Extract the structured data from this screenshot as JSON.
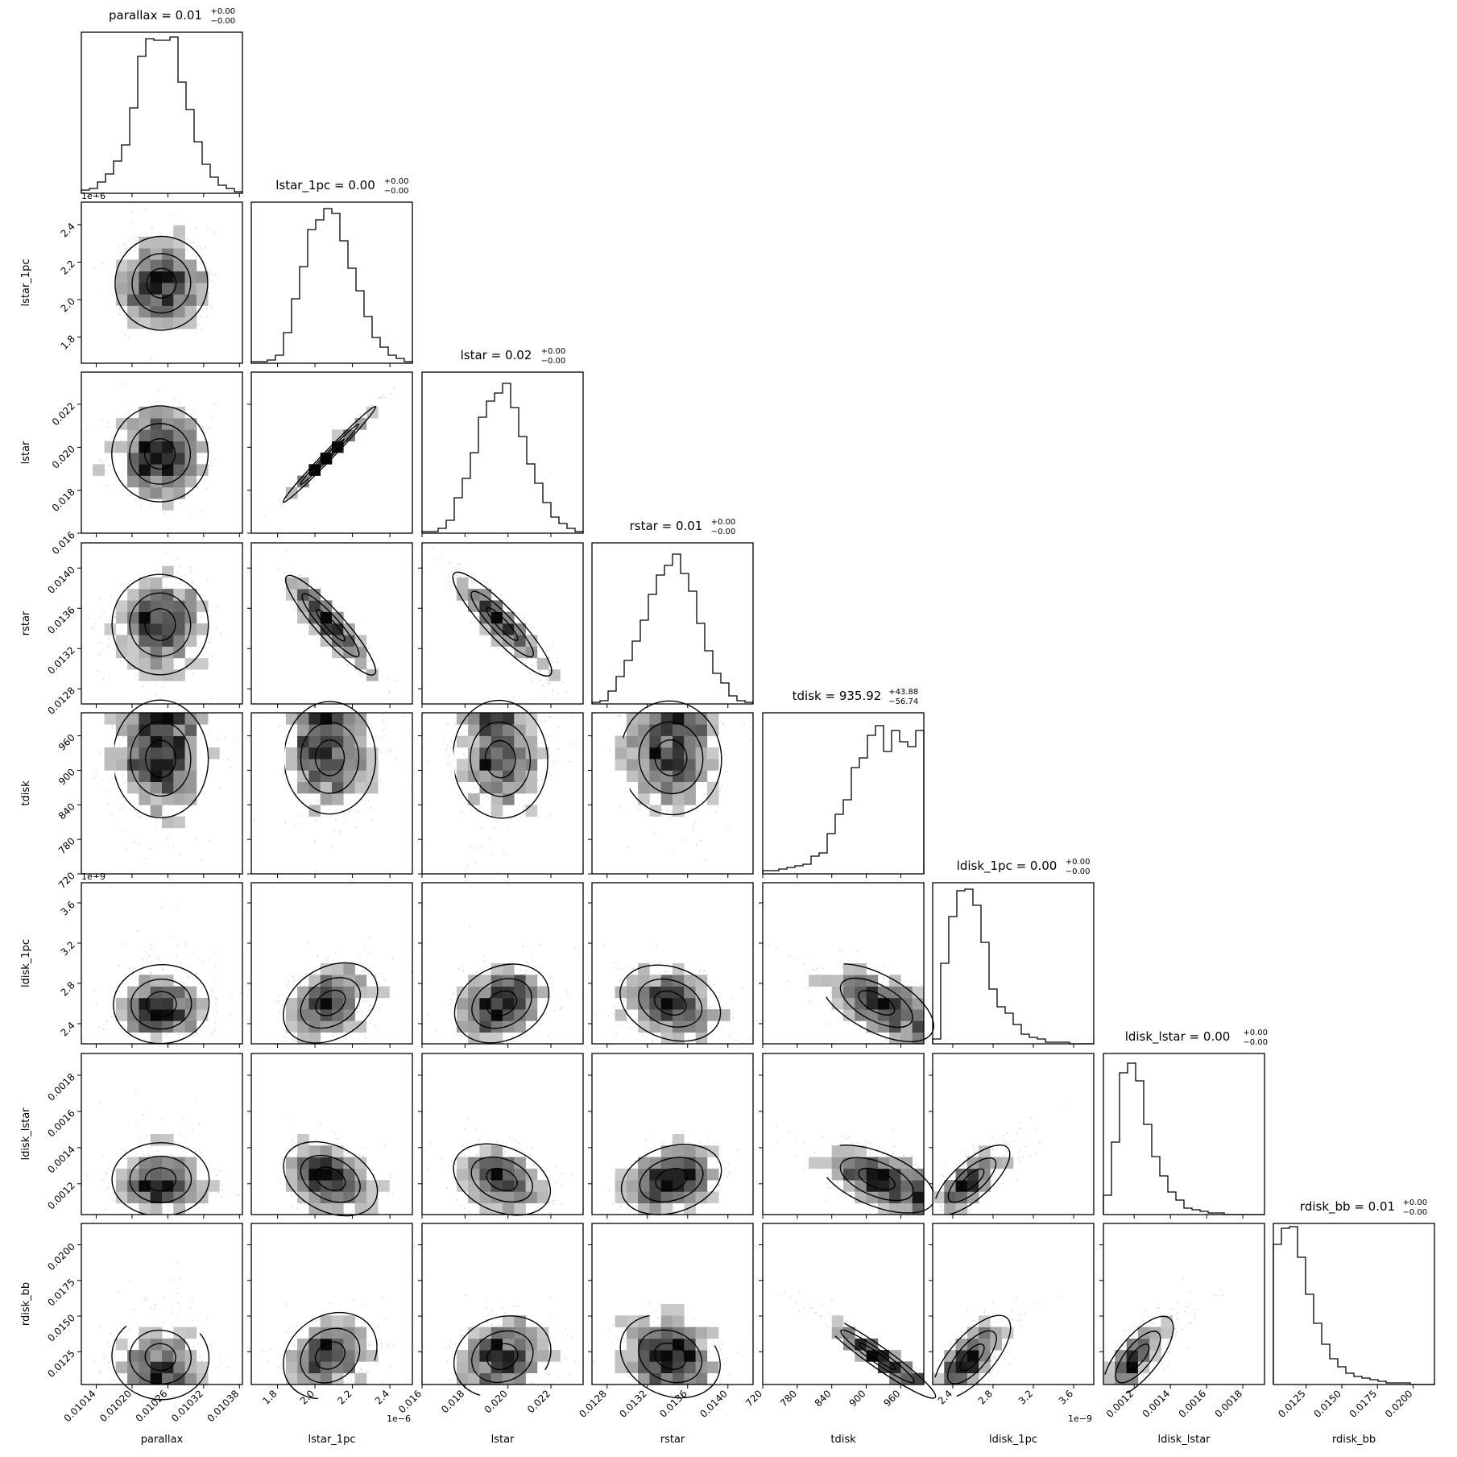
{
  "chart_data": {
    "type": "corner",
    "parameters": [
      "parallax",
      "lstar_1pc",
      "lstar",
      "rstar",
      "tdisk",
      "ldisk_1pc",
      "ldisk_lstar",
      "rdisk_bb"
    ],
    "titles": [
      {
        "main": "parallax = 0.01",
        "sup": "+0.00",
        "sub": "−0.00"
      },
      {
        "main": "lstar_1pc = 0.00",
        "sup": "+0.00",
        "sub": "−0.00"
      },
      {
        "main": "lstar = 0.02",
        "sup": "+0.00",
        "sub": "−0.00"
      },
      {
        "main": "rstar = 0.01",
        "sup": "+0.00",
        "sub": "−0.00"
      },
      {
        "main": "tdisk = 935.92",
        "sup": "+43.88",
        "sub": "−56.74"
      },
      {
        "main": "ldisk_1pc = 0.00",
        "sup": "+0.00",
        "sub": "−0.00"
      },
      {
        "main": "ldisk_lstar = 0.00",
        "sup": "+0.00",
        "sub": "−0.00"
      },
      {
        "main": "rdisk_bb = 0.01",
        "sup": "+0.00",
        "sub": "−0.00"
      }
    ],
    "ranges": [
      [
        0.010115,
        0.010385
      ],
      [
        1.66e-06,
        2.52e-06
      ],
      [
        0.016,
        0.0235
      ],
      [
        0.01265,
        0.01425
      ],
      [
        720,
        1000
      ],
      [
        2.2e-09,
        3.8e-09
      ],
      [
        0.00103,
        0.00192
      ],
      [
        0.0102,
        0.0215
      ]
    ],
    "ticks": [
      [
        0.01014,
        0.0102,
        0.01026,
        0.01032,
        0.01038
      ],
      [
        1.8e-06,
        2e-06,
        2.2e-06,
        2.4e-06
      ],
      [
        0.016,
        0.018,
        0.02,
        0.022
      ],
      [
        0.0128,
        0.0132,
        0.0136,
        0.014
      ],
      [
        720,
        780,
        840,
        900,
        960
      ],
      [
        2.4e-09,
        2.8e-09,
        3.2e-09,
        3.6e-09
      ],
      [
        0.0012,
        0.0014,
        0.0016,
        0.0018
      ],
      [
        0.0125,
        0.015,
        0.0175,
        0.02
      ]
    ],
    "tick_labels_x": [
      [
        "0.01014",
        "0.01020",
        "0.01026",
        "0.01032",
        "0.01038"
      ],
      [
        "1.8",
        "2.0",
        "2.2",
        "2.4"
      ],
      [
        "0.016",
        "0.018",
        "0.020",
        "0.022"
      ],
      [
        "0.0128",
        "0.0132",
        "0.0136",
        "0.0140"
      ],
      [
        "720",
        "780",
        "840",
        "900",
        "960"
      ],
      [
        "2.4",
        "2.8",
        "3.2",
        "3.6"
      ],
      [
        "0.0012",
        "0.0014",
        "0.0016",
        "0.0018"
      ],
      [
        "0.0125",
        "0.0150",
        "0.0175",
        "0.0200"
      ]
    ],
    "tick_labels_y": [
      [],
      [
        "1.8",
        "2.0",
        "2.2",
        "2.4"
      ],
      [
        "0.016",
        "0.018",
        "0.020",
        "0.022"
      ],
      [
        "0.0128",
        "0.0132",
        "0.0136",
        "0.0140"
      ],
      [
        "720",
        "780",
        "840",
        "900",
        "960"
      ],
      [
        "2.4",
        "2.8",
        "3.2",
        "3.6"
      ],
      [
        "0.0012",
        "0.0014",
        "0.0016",
        "0.0018"
      ],
      [
        "0.0125",
        "0.0150",
        "0.0175",
        "0.0200"
      ]
    ],
    "offsets": {
      "lstar_1pc": "1e−6",
      "ldisk_1pc": "1e−9"
    },
    "x_labels": [
      "parallax",
      "lstar_1pc",
      "lstar",
      "rstar",
      "tdisk",
      "ldisk_1pc",
      "ldisk_lstar",
      "rdisk_bb"
    ],
    "y_labels": [
      "lstar_1pc",
      "lstar",
      "rstar",
      "tdisk",
      "ldisk_1pc",
      "ldisk_lstar",
      "rdisk_bb"
    ],
    "histograms": {
      "parallax": [
        0.02,
        0.03,
        0.07,
        0.12,
        0.2,
        0.3,
        0.53,
        0.85,
        0.96,
        0.95,
        0.95,
        0.97,
        0.69,
        0.52,
        0.32,
        0.18,
        0.1,
        0.05,
        0.03,
        0.01
      ],
      "lstar_1pc": [
        0.01,
        0.01,
        0.02,
        0.05,
        0.19,
        0.4,
        0.6,
        0.83,
        0.89,
        0.96,
        0.93,
        0.76,
        0.59,
        0.45,
        0.29,
        0.16,
        0.1,
        0.05,
        0.03,
        0.01
      ],
      "lstar": [
        0.01,
        0.01,
        0.03,
        0.08,
        0.22,
        0.34,
        0.5,
        0.72,
        0.82,
        0.87,
        0.93,
        0.78,
        0.6,
        0.43,
        0.31,
        0.19,
        0.1,
        0.06,
        0.03,
        0.01
      ],
      "rstar": [
        0.01,
        0.02,
        0.08,
        0.17,
        0.27,
        0.39,
        0.52,
        0.68,
        0.8,
        0.86,
        0.93,
        0.81,
        0.7,
        0.5,
        0.33,
        0.19,
        0.13,
        0.05,
        0.02,
        0.01
      ],
      "tdisk": [
        0.02,
        0.02,
        0.03,
        0.04,
        0.05,
        0.06,
        0.11,
        0.13,
        0.25,
        0.37,
        0.46,
        0.66,
        0.72,
        0.86,
        0.92,
        0.76,
        0.89,
        0.82,
        0.79,
        0.89
      ],
      "ldisk_1pc": [
        0.03,
        0.5,
        0.79,
        0.95,
        0.96,
        0.86,
        0.63,
        0.34,
        0.23,
        0.19,
        0.12,
        0.06,
        0.04,
        0.03,
        0.01,
        0.01,
        0.01,
        0.0,
        0.0,
        0.0
      ],
      "ldisk_lstar": [
        0.12,
        0.45,
        0.88,
        0.94,
        0.83,
        0.56,
        0.36,
        0.24,
        0.14,
        0.09,
        0.04,
        0.03,
        0.02,
        0.01,
        0.01,
        0.0,
        0.0,
        0.0,
        0.0,
        0.0
      ],
      "rdisk_bb": [
        0.87,
        0.97,
        0.98,
        0.79,
        0.56,
        0.38,
        0.25,
        0.16,
        0.11,
        0.07,
        0.05,
        0.04,
        0.03,
        0.02,
        0.01,
        0.01,
        0.01,
        0.0,
        0.0,
        0.0
      ]
    },
    "correlations": [
      [
        1,
        0.0,
        0.0,
        0.0,
        0.0,
        0.0,
        0.0,
        0.0
      ],
      [
        0.0,
        1,
        0.99,
        -0.92,
        0.0,
        0.3,
        -0.3,
        0.2
      ],
      [
        0.0,
        0.99,
        1,
        -0.9,
        0.0,
        0.3,
        -0.3,
        0.2
      ],
      [
        0.0,
        -0.92,
        -0.9,
        1,
        0.0,
        -0.3,
        0.3,
        -0.2
      ],
      [
        0.0,
        0.0,
        0.0,
        0.0,
        1,
        -0.6,
        -0.55,
        -0.95
      ],
      [
        0.0,
        0.3,
        0.3,
        -0.3,
        -0.6,
        1,
        0.75,
        0.7
      ],
      [
        0.0,
        -0.3,
        -0.3,
        0.3,
        -0.55,
        0.75,
        1,
        0.75
      ],
      [
        0.0,
        0.2,
        0.2,
        -0.2,
        -0.95,
        0.7,
        0.75,
        1
      ]
    ],
    "colors": {
      "line": "#000000",
      "background": "#ffffff"
    }
  }
}
